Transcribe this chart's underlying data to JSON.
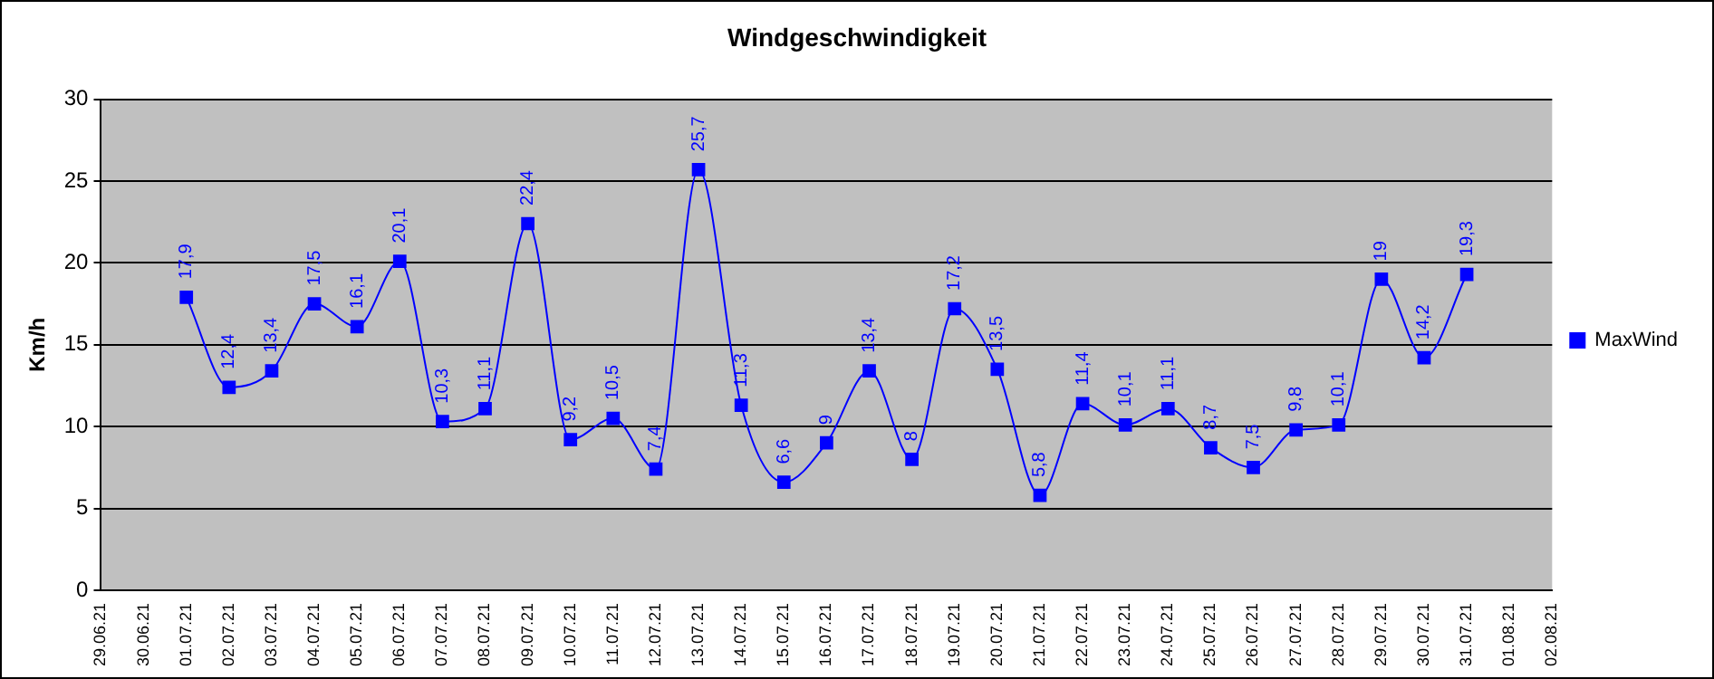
{
  "chart_data": {
    "type": "line",
    "title": "Windgeschwindigkeit",
    "ylabel": "Km/h",
    "categories": [
      "29.06.21",
      "30.06.21",
      "01.07.21",
      "02.07.21",
      "03.07.21",
      "04.07.21",
      "05.07.21",
      "06.07.21",
      "07.07.21",
      "08.07.21",
      "09.07.21",
      "10.07.21",
      "11.07.21",
      "12.07.21",
      "13.07.21",
      "14.07.21",
      "15.07.21",
      "16.07.21",
      "17.07.21",
      "18.07.21",
      "19.07.21",
      "20.07.21",
      "21.07.21",
      "22.07.21",
      "23.07.21",
      "24.07.21",
      "25.07.21",
      "26.07.21",
      "27.07.21",
      "28.07.21",
      "29.07.21",
      "30.07.21",
      "31.07.21",
      "01.08.21",
      "02.08.21"
    ],
    "series": [
      {
        "name": "MaxWind",
        "color": "#0000ff",
        "values": [
          null,
          null,
          17.9,
          12.4,
          13.4,
          17.5,
          16.1,
          20.1,
          10.3,
          11.1,
          22.4,
          9.2,
          10.5,
          7.4,
          25.7,
          11.3,
          6.6,
          9,
          13.4,
          8,
          17.2,
          13.5,
          5.8,
          11.4,
          10.1,
          11.1,
          8.7,
          7.5,
          9.8,
          10.1,
          19,
          14.2,
          19.3,
          null,
          null
        ],
        "value_labels": [
          null,
          null,
          "17,9",
          "12,4",
          "13,4",
          "17,5",
          "16,1",
          "20,1",
          "10,3",
          "11,1",
          "22,4",
          "9,2",
          "10,5",
          "7,4",
          "25,7",
          "11,3",
          "6,6",
          "9",
          "13,4",
          "8",
          "17,2",
          "13,5",
          "5,8",
          "11,4",
          "10,1",
          "11,1",
          "8,7",
          "7,5",
          "9,8",
          "10,1",
          "19",
          "14,2",
          "19,3",
          null,
          null
        ]
      }
    ],
    "ylim": [
      0,
      30
    ],
    "yticks": [
      0,
      5,
      10,
      15,
      20,
      25,
      30
    ],
    "grid": "y",
    "legend": "right",
    "marker": "square",
    "line_style": "solid"
  }
}
